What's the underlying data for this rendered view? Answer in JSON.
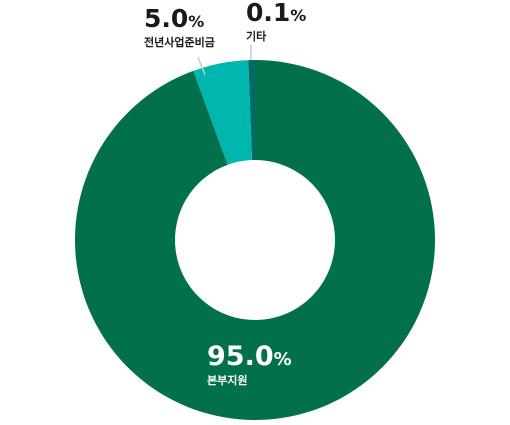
{
  "chart_data": {
    "type": "pie",
    "title": "",
    "slices": [
      {
        "label": "본부지원",
        "value": 95.0,
        "value_text": "95.0",
        "unit": "%",
        "color": "#02714b"
      },
      {
        "label": "전년사업준비금",
        "value": 5.0,
        "value_text": "5.0",
        "unit": "%",
        "color": "#00b7b0"
      },
      {
        "label": "기타",
        "value": 0.1,
        "value_text": "0.1",
        "unit": "%",
        "color": "#006a67"
      }
    ],
    "donut": true,
    "legend": "none"
  }
}
